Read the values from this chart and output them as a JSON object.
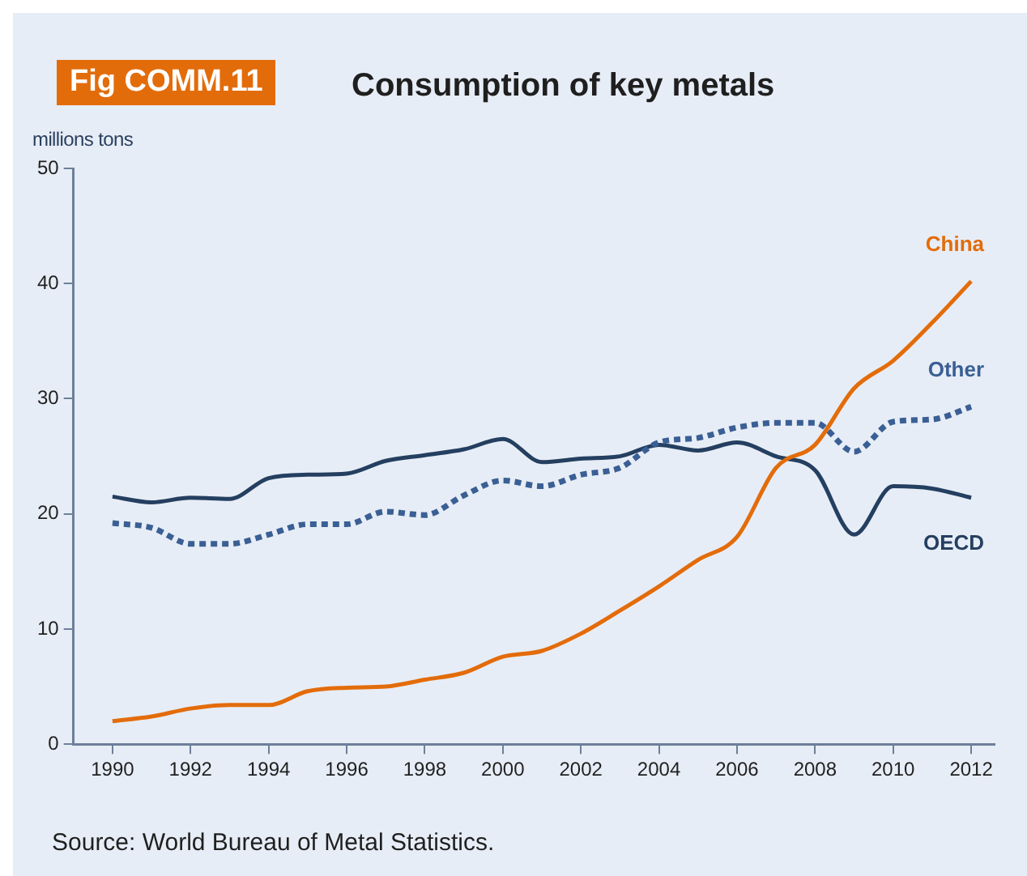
{
  "chart_data": {
    "type": "line",
    "title": "Consumption of key metals",
    "ylabel": "millions tons",
    "annotations": [
      "Fig COMM.11",
      "Source: World Bureau of Metal Statistics."
    ],
    "x": [
      1990,
      1991,
      1992,
      1993,
      1994,
      1995,
      1996,
      1997,
      1998,
      1999,
      2000,
      2001,
      2002,
      2003,
      2004,
      2005,
      2006,
      2007,
      2008,
      2009,
      2010,
      2011,
      2012
    ],
    "xlim": [
      1989,
      2012.6
    ],
    "xticks": [
      1990,
      1992,
      1994,
      1996,
      1998,
      2000,
      2002,
      2004,
      2006,
      2008,
      2010,
      2012
    ],
    "ylim": [
      0,
      50
    ],
    "yticks": [
      0,
      10,
      20,
      30,
      40,
      50
    ],
    "grid": false,
    "legend": false,
    "marker": "none",
    "series": [
      {
        "name": "China",
        "color": "#e36c0a",
        "line_style": "solid",
        "values": [
          2.0,
          2.4,
          3.1,
          3.4,
          3.4,
          4.6,
          4.9,
          5.0,
          5.6,
          6.2,
          7.6,
          8.1,
          9.6,
          11.6,
          13.7,
          16.0,
          18.0,
          24.0,
          26.0,
          30.9,
          33.3,
          36.6,
          40.2
        ]
      },
      {
        "name": "Other",
        "color": "#3a5f94",
        "line_style": "dotted",
        "values": [
          19.2,
          18.8,
          17.4,
          17.4,
          18.2,
          19.1,
          19.1,
          20.2,
          19.9,
          21.6,
          22.9,
          22.4,
          23.4,
          24.0,
          26.2,
          26.6,
          27.5,
          27.9,
          27.9,
          25.4,
          28.0,
          28.2,
          29.3
        ]
      },
      {
        "name": "OECD",
        "color": "#243f60",
        "line_style": "solid",
        "values": [
          21.5,
          21.0,
          21.4,
          21.3,
          23.1,
          23.4,
          23.5,
          24.6,
          25.1,
          25.6,
          26.5,
          24.5,
          24.8,
          25.0,
          26.0,
          25.5,
          26.2,
          25.0,
          23.8,
          18.2,
          22.4,
          22.2,
          21.4
        ]
      }
    ]
  }
}
